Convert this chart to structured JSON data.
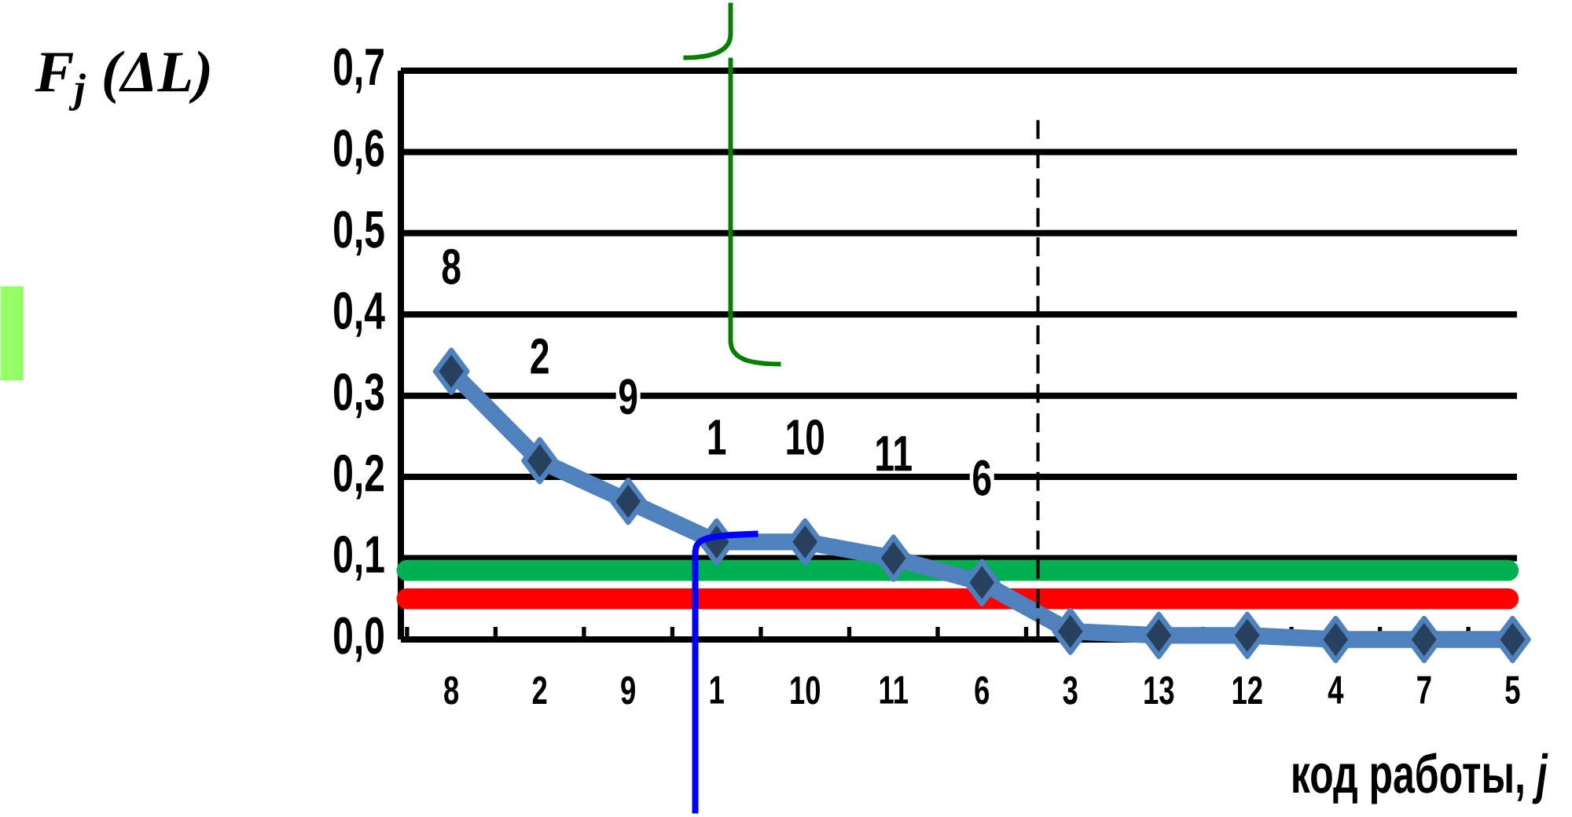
{
  "chart_data": {
    "type": "line",
    "ylabel": "F$_{j}$ (ΔL)",
    "xlabel": "код работы, *j*",
    "categories": [
      "8",
      "2",
      "9",
      "1",
      "10",
      "11",
      "6",
      "3",
      "13",
      "12",
      "4",
      "7",
      "5"
    ],
    "series": [
      {
        "color": "#4f81bd",
        "values": [
          0.33,
          0.22,
          0.17,
          0.12,
          0.12,
          0.1,
          0.07,
          0.01,
          0.005,
          0.005,
          0,
          0,
          0
        ]
      }
    ],
    "marker": "diamond",
    "line_style": "solid",
    "grid": "y",
    "ylim": [
      0,
      0.7
    ],
    "yticks": [
      {
        "value": 0,
        "label": "0,0"
      },
      {
        "value": 0.1,
        "label": "0,1"
      },
      {
        "value": 0.2,
        "label": "0,2"
      },
      {
        "value": 0.3,
        "label": "0,3"
      },
      {
        "value": 0.4,
        "label": "0,4"
      },
      {
        "value": 0.5,
        "label": "0,5"
      },
      {
        "value": 0.6,
        "label": "0,6"
      },
      {
        "value": 0.7,
        "label": "0,7"
      }
    ],
    "ref_lines": [
      {
        "axis": "y",
        "value": 0.085,
        "color": "#00b050"
      },
      {
        "axis": "y",
        "value": 0.05,
        "color": "#ff0000"
      }
    ],
    "annotations": [
      "8",
      "2",
      "9",
      "1",
      "10",
      "11",
      "6"
    ]
  }
}
